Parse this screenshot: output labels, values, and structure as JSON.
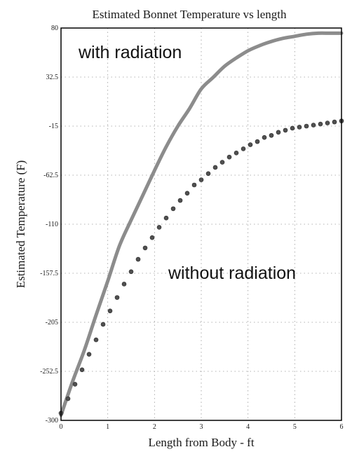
{
  "chart_data": {
    "type": "line",
    "title": "Estimated Bonnet Temperature vs length",
    "xlabel": "Length from Body - ft",
    "ylabel": "Estimated Temperature (F)",
    "xlim": [
      0,
      6
    ],
    "ylim": [
      -300,
      80
    ],
    "x_ticks": [
      "0",
      "1",
      "2",
      "3",
      "4",
      "5",
      "6"
    ],
    "y_ticks": [
      "-300",
      "-252.5",
      "-205",
      "-157.5",
      "-110",
      "-62.5",
      "-15",
      "32.5",
      "80"
    ],
    "grid": true,
    "annotations": [
      {
        "text": "with radiation",
        "series": "with radiation"
      },
      {
        "text": "without radiation",
        "series": "without radiation"
      }
    ],
    "series": [
      {
        "name": "with radiation",
        "style": "line",
        "color": "#8c8c8c",
        "x": [
          0,
          0.25,
          0.5,
          0.75,
          1,
          1.25,
          1.5,
          1.75,
          2,
          2.25,
          2.5,
          2.75,
          3,
          3.25,
          3.5,
          3.75,
          4,
          4.25,
          4.5,
          4.75,
          5,
          5.25,
          5.5,
          5.75,
          6
        ],
        "y": [
          -295,
          -262,
          -232,
          -198,
          -165,
          -131,
          -106,
          -82,
          -58,
          -35,
          -15,
          2,
          21,
          32,
          43,
          51,
          58,
          63,
          67,
          70,
          72,
          74,
          75,
          75,
          75
        ]
      },
      {
        "name": "without radiation",
        "style": "dots",
        "color": "#505050",
        "x": [
          0,
          0.15,
          0.3,
          0.45,
          0.6,
          0.75,
          0.9,
          1.05,
          1.2,
          1.35,
          1.5,
          1.65,
          1.8,
          1.95,
          2.1,
          2.25,
          2.4,
          2.55,
          2.7,
          2.85,
          3.0,
          3.15,
          3.3,
          3.45,
          3.6,
          3.75,
          3.9,
          4.05,
          4.2,
          4.35,
          4.5,
          4.65,
          4.8,
          4.95,
          5.1,
          5.25,
          5.4,
          5.55,
          5.7,
          5.85,
          6.0
        ],
        "y": [
          -293,
          -279,
          -265,
          -251,
          -236,
          -222,
          -207,
          -194,
          -181,
          -168,
          -156,
          -144,
          -133,
          -123,
          -113,
          -104,
          -95,
          -87,
          -80,
          -72,
          -67,
          -61,
          -55,
          -50,
          -45,
          -41,
          -37,
          -33,
          -30,
          -26,
          -24,
          -21,
          -19,
          -17,
          -16,
          -15,
          -14,
          -13,
          -12,
          -11,
          -10
        ]
      }
    ]
  }
}
